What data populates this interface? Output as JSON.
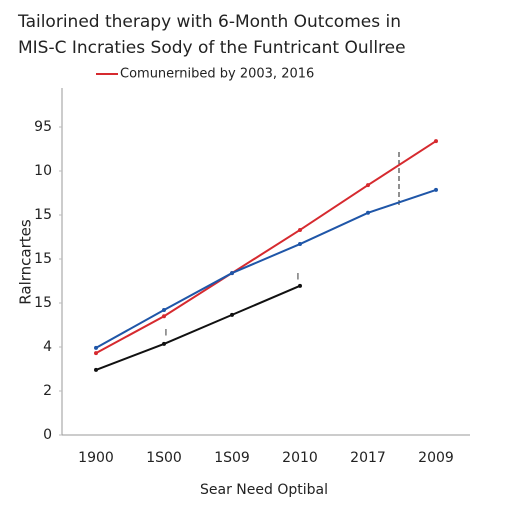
{
  "chart_data": {
    "type": "line",
    "title": [
      "Tailorined therapy with 6-Month Outcomes in",
      "MIS-C Incraties Sody of the Funtricant Oullree"
    ],
    "xlabel": "Sear Need Optibal",
    "ylabel": "Ralrncartes",
    "categories": [
      "1900",
      "1S00",
      "1S09",
      "2010",
      "2017",
      "2009"
    ],
    "series": [
      {
        "name": "Comunernibed by 2003, 2016",
        "color": "#d62a2f",
        "values": [
          1.86,
          2.7,
          3.68,
          4.66,
          5.68,
          6.68
        ]
      },
      {
        "color": "#1f56a8",
        "values": [
          1.98,
          2.84,
          3.68,
          4.34,
          5.05,
          5.57
        ]
      },
      {
        "color": "#111111",
        "values": [
          1.48,
          2.07,
          2.73,
          3.39,
          null,
          null
        ]
      }
    ],
    "annotations": [
      "I",
      "I"
    ],
    "ylim": [
      0,
      8
    ],
    "yticks": [
      0,
      {
        "value": 1,
        "label": "2"
      },
      {
        "value": 2,
        "label": "4"
      },
      {
        "value": 3,
        "label": "15"
      },
      {
        "value": 4,
        "label": "15"
      },
      {
        "value": 5,
        "label": "15"
      },
      {
        "value": 6,
        "label": "10"
      },
      {
        "value": 7,
        "label": "95"
      }
    ],
    "legend": "top-left",
    "grid": false
  }
}
